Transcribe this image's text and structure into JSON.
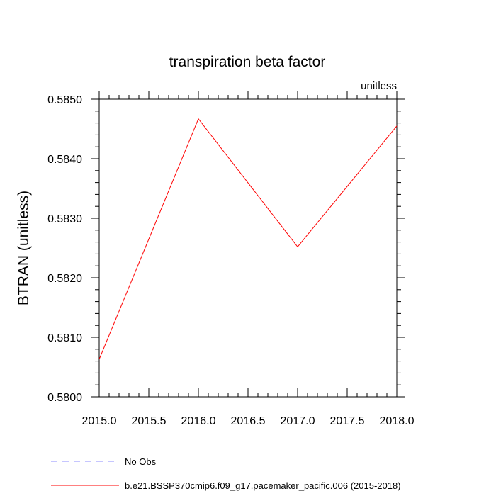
{
  "chart_data": {
    "type": "line",
    "title": "transpiration beta factor",
    "units_label": "unitless",
    "ylabel": "BTRAN  (unitless)",
    "xlabel": "",
    "xlim": [
      2015.0,
      2018.0
    ],
    "ylim": [
      0.58,
      0.585
    ],
    "x_ticks": [
      "2015.0",
      "2015.5",
      "2016.0",
      "2016.5",
      "2017.0",
      "2017.5",
      "2018.0"
    ],
    "y_ticks": [
      "0.5800",
      "0.5810",
      "0.5820",
      "0.5830",
      "0.5840",
      "0.5850"
    ],
    "x": [
      2015.0,
      2016.0,
      2017.0,
      2018.0
    ],
    "series": [
      {
        "name": "b.e21.BSSP370cmip6.f09_g17.pacemaker_pacific.006 (2015-2018)",
        "color": "#ff0000",
        "dash": "solid",
        "values": [
          0.58063,
          0.58467,
          0.58252,
          0.58455
        ]
      }
    ],
    "legend": {
      "placement": "bottom-left",
      "entries": [
        {
          "label": "No Obs",
          "color": "#8c8cff",
          "dash": "dashed"
        },
        {
          "label": "b.e21.BSSP370cmip6.f09_g17.pacemaker_pacific.006 (2015-2018)",
          "color": "#ff0000",
          "dash": "solid"
        }
      ]
    },
    "grid": false
  }
}
